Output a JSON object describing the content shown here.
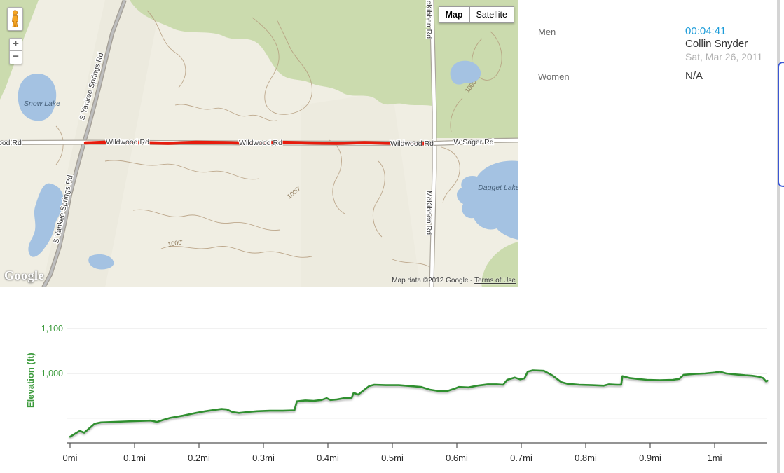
{
  "map": {
    "type_buttons": {
      "map": "Map",
      "satellite": "Satellite"
    },
    "zoom_in": "+",
    "zoom_out": "−",
    "labels": {
      "snow_lake": "Snow Lake",
      "dagget_lake": "Dagget Lake",
      "road_left_cut": "ood Rd",
      "wildwood_1": "Wildwood Rd",
      "wildwood_2": "Wildwood Rd",
      "wildwood_3": "Wildwood Rd",
      "w_sager": "W Sager Rd",
      "mckibben_top": "McKibben Rd",
      "mckibben_bottom": "McKibben Rd",
      "yankee_upper": "S Yankee Springs Rd",
      "yankee_lower": "S Yankee Springs Rd"
    },
    "contour_labels": [
      "1000'",
      "1000'",
      "1000'"
    ],
    "logo": "Google",
    "attribution_text": "Map data ©2012 Google - ",
    "attribution_link": "Terms of Use",
    "colors": {
      "land": "#f0eee3",
      "forest": "#cbdbae",
      "water": "#a4c2e2",
      "route": "#e81b0c",
      "road_fill": "#ffffff",
      "road_casing": "#aaa59b",
      "contour": "#b59c7e"
    }
  },
  "results": {
    "men_label": "Men",
    "men_time": "00:04:41",
    "men_name": "Collin Snyder",
    "men_date": "Sat, Mar 26, 2011",
    "women_label": "Women",
    "women_value": "N/A",
    "time_color": "#1d9cd9"
  },
  "scrollbar": {
    "accent": "#3b57d4"
  },
  "chart_data": {
    "type": "line",
    "title": "",
    "xlabel": "",
    "ylabel": "Elevation (ft)",
    "x_unit": "mi",
    "y_unit": "ft",
    "line_color": "#2f8f2f",
    "axis_label_color": "#3d9b3d",
    "x_tick_color": "#2b2b2b",
    "axis_color": "#555555",
    "grid": true,
    "legend": "none",
    "xlim": [
      0,
      1.082
    ],
    "ygrid": [
      {
        "ft": 1100,
        "label": "1,100",
        "color": "#e3e3e3"
      },
      {
        "ft": 1000,
        "label": "1,000",
        "color": "#e3e3e3"
      },
      {
        "ft": 900,
        "label": "",
        "color": "#efefef"
      }
    ],
    "xticks": [
      {
        "mi": 0.0,
        "label": "0mi"
      },
      {
        "mi": 0.1,
        "label": "0.1mi"
      },
      {
        "mi": 0.2,
        "label": "0.2mi"
      },
      {
        "mi": 0.3,
        "label": "0.3mi"
      },
      {
        "mi": 0.4,
        "label": "0.4mi"
      },
      {
        "mi": 0.5,
        "label": "0.5mi"
      },
      {
        "mi": 0.6,
        "label": "0.6mi"
      },
      {
        "mi": 0.7,
        "label": "0.7mi"
      },
      {
        "mi": 0.8,
        "label": "0.8mi"
      },
      {
        "mi": 0.9,
        "label": "0.9mi"
      },
      {
        "mi": 1.0,
        "label": "1mi"
      }
    ],
    "points": [
      [
        0.0,
        859
      ],
      [
        0.008,
        866
      ],
      [
        0.015,
        872
      ],
      [
        0.022,
        868
      ],
      [
        0.03,
        878
      ],
      [
        0.038,
        888
      ],
      [
        0.048,
        891
      ],
      [
        0.085,
        893
      ],
      [
        0.105,
        894
      ],
      [
        0.125,
        895
      ],
      [
        0.135,
        892
      ],
      [
        0.143,
        896
      ],
      [
        0.155,
        901
      ],
      [
        0.175,
        906
      ],
      [
        0.195,
        912
      ],
      [
        0.21,
        916
      ],
      [
        0.225,
        919
      ],
      [
        0.235,
        921
      ],
      [
        0.243,
        920
      ],
      [
        0.252,
        914
      ],
      [
        0.262,
        912
      ],
      [
        0.275,
        914
      ],
      [
        0.29,
        916
      ],
      [
        0.31,
        917
      ],
      [
        0.33,
        917
      ],
      [
        0.348,
        918
      ],
      [
        0.352,
        938
      ],
      [
        0.365,
        940
      ],
      [
        0.378,
        939
      ],
      [
        0.39,
        941
      ],
      [
        0.398,
        945
      ],
      [
        0.404,
        941
      ],
      [
        0.413,
        942
      ],
      [
        0.425,
        945
      ],
      [
        0.437,
        946
      ],
      [
        0.44,
        957
      ],
      [
        0.447,
        953
      ],
      [
        0.455,
        962
      ],
      [
        0.464,
        972
      ],
      [
        0.472,
        975
      ],
      [
        0.49,
        974
      ],
      [
        0.51,
        974
      ],
      [
        0.528,
        972
      ],
      [
        0.545,
        970
      ],
      [
        0.558,
        964
      ],
      [
        0.572,
        961
      ],
      [
        0.585,
        961
      ],
      [
        0.598,
        967
      ],
      [
        0.603,
        970
      ],
      [
        0.618,
        969
      ],
      [
        0.632,
        973
      ],
      [
        0.648,
        976
      ],
      [
        0.662,
        976
      ],
      [
        0.672,
        975
      ],
      [
        0.678,
        986
      ],
      [
        0.69,
        991
      ],
      [
        0.698,
        987
      ],
      [
        0.705,
        989
      ],
      [
        0.71,
        1004
      ],
      [
        0.718,
        1007
      ],
      [
        0.735,
        1006
      ],
      [
        0.748,
        996
      ],
      [
        0.762,
        981
      ],
      [
        0.772,
        977
      ],
      [
        0.79,
        975
      ],
      [
        0.81,
        974
      ],
      [
        0.828,
        973
      ],
      [
        0.836,
        976
      ],
      [
        0.848,
        975
      ],
      [
        0.855,
        975
      ],
      [
        0.857,
        994
      ],
      [
        0.868,
        990
      ],
      [
        0.88,
        988
      ],
      [
        0.895,
        986
      ],
      [
        0.915,
        985
      ],
      [
        0.935,
        986
      ],
      [
        0.945,
        988
      ],
      [
        0.952,
        997
      ],
      [
        0.97,
        999
      ],
      [
        0.985,
        1000
      ],
      [
        1.0,
        1002
      ],
      [
        1.008,
        1004
      ],
      [
        1.018,
        1000
      ],
      [
        1.032,
        998
      ],
      [
        1.048,
        996
      ],
      [
        1.058,
        995
      ],
      [
        1.068,
        993
      ],
      [
        1.075,
        990
      ],
      [
        1.08,
        982
      ],
      [
        1.082,
        984
      ]
    ]
  }
}
